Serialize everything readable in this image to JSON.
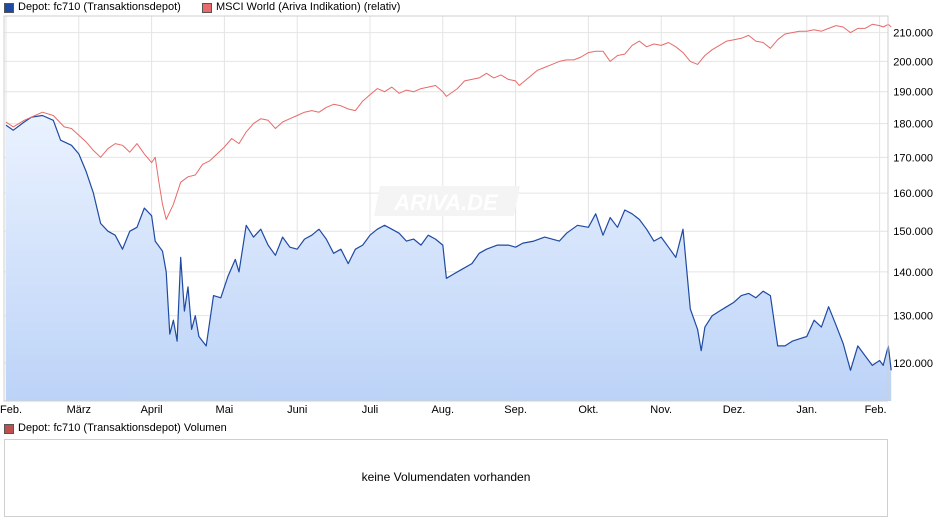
{
  "legend": [
    {
      "label": "Depot: fc710 (Transaktionsdepot)",
      "color": "#1f4aa3"
    },
    {
      "label": "MSCI World (Ariva Indikation) (relativ)",
      "color": "#e86a6a"
    }
  ],
  "watermark": "ARIVA.DE",
  "volume": {
    "legend_label": "Depot: fc710 (Transaktionsdepot) Volumen",
    "legend_color": "#c0504d",
    "message": "keine Volumendaten vorhanden"
  },
  "chart_data": {
    "type": "line",
    "x_months": [
      "Feb.",
      "März",
      "April",
      "Mai",
      "Juni",
      "Juli",
      "Aug.",
      "Sep.",
      "Okt.",
      "Nov.",
      "Dez.",
      "Jan.",
      "Feb."
    ],
    "y_ticks": [
      "120.000",
      "130.000",
      "140.000",
      "150.000",
      "160.000",
      "170.000",
      "180.000",
      "190.000",
      "200.000",
      "210.000"
    ],
    "ylim": [
      112500,
      216000
    ],
    "y_scale": "log",
    "grid": true,
    "series": [
      {
        "name": "Depot: fc710 (Transaktionsdepot)",
        "style": "area",
        "color": "#1f4aa3",
        "values": [
          [
            0.0,
            179500
          ],
          [
            0.1,
            178000
          ],
          [
            0.25,
            180500
          ],
          [
            0.35,
            182000
          ],
          [
            0.5,
            182500
          ],
          [
            0.65,
            181000
          ],
          [
            0.75,
            175000
          ],
          [
            0.9,
            173500
          ],
          [
            1.0,
            171000
          ],
          [
            1.1,
            166000
          ],
          [
            1.2,
            160000
          ],
          [
            1.3,
            152000
          ],
          [
            1.4,
            150000
          ],
          [
            1.5,
            149000
          ],
          [
            1.6,
            145500
          ],
          [
            1.7,
            150000
          ],
          [
            1.8,
            151000
          ],
          [
            1.9,
            156000
          ],
          [
            2.0,
            154000
          ],
          [
            2.05,
            147500
          ],
          [
            2.15,
            145000
          ],
          [
            2.2,
            140000
          ],
          [
            2.25,
            126000
          ],
          [
            2.3,
            129000
          ],
          [
            2.35,
            124500
          ],
          [
            2.4,
            143500
          ],
          [
            2.45,
            131000
          ],
          [
            2.5,
            136500
          ],
          [
            2.55,
            127000
          ],
          [
            2.6,
            130000
          ],
          [
            2.65,
            125500
          ],
          [
            2.75,
            123500
          ],
          [
            2.85,
            134500
          ],
          [
            2.95,
            134000
          ],
          [
            3.05,
            139000
          ],
          [
            3.15,
            143000
          ],
          [
            3.2,
            140000
          ],
          [
            3.3,
            151500
          ],
          [
            3.4,
            148500
          ],
          [
            3.5,
            150500
          ],
          [
            3.6,
            146500
          ],
          [
            3.7,
            144000
          ],
          [
            3.8,
            148500
          ],
          [
            3.9,
            146000
          ],
          [
            4.0,
            145500
          ],
          [
            4.1,
            148000
          ],
          [
            4.2,
            149000
          ],
          [
            4.3,
            150500
          ],
          [
            4.4,
            148000
          ],
          [
            4.5,
            144500
          ],
          [
            4.6,
            145500
          ],
          [
            4.7,
            142000
          ],
          [
            4.8,
            145500
          ],
          [
            4.9,
            146500
          ],
          [
            5.0,
            149000
          ],
          [
            5.1,
            150500
          ],
          [
            5.2,
            151500
          ],
          [
            5.3,
            150500
          ],
          [
            5.4,
            149500
          ],
          [
            5.5,
            147500
          ],
          [
            5.6,
            148000
          ],
          [
            5.7,
            146500
          ],
          [
            5.8,
            149000
          ],
          [
            5.9,
            148000
          ],
          [
            6.0,
            146500
          ],
          [
            6.05,
            138500
          ],
          [
            6.15,
            139500
          ],
          [
            6.25,
            140500
          ],
          [
            6.4,
            142000
          ],
          [
            6.5,
            144500
          ],
          [
            6.6,
            145500
          ],
          [
            6.75,
            146500
          ],
          [
            6.9,
            146500
          ],
          [
            7.0,
            146000
          ],
          [
            7.1,
            147000
          ],
          [
            7.25,
            147500
          ],
          [
            7.4,
            148500
          ],
          [
            7.5,
            148000
          ],
          [
            7.6,
            147500
          ],
          [
            7.7,
            149500
          ],
          [
            7.85,
            151500
          ],
          [
            8.0,
            151000
          ],
          [
            8.1,
            154500
          ],
          [
            8.2,
            149000
          ],
          [
            8.3,
            153500
          ],
          [
            8.4,
            151000
          ],
          [
            8.5,
            155500
          ],
          [
            8.6,
            154500
          ],
          [
            8.7,
            153000
          ],
          [
            8.8,
            150500
          ],
          [
            8.9,
            147500
          ],
          [
            9.0,
            148500
          ],
          [
            9.1,
            146000
          ],
          [
            9.2,
            143500
          ],
          [
            9.3,
            150500
          ],
          [
            9.4,
            131500
          ],
          [
            9.5,
            127000
          ],
          [
            9.55,
            122500
          ],
          [
            9.6,
            127500
          ],
          [
            9.7,
            130000
          ],
          [
            9.8,
            131000
          ],
          [
            9.9,
            132000
          ],
          [
            10.0,
            133000
          ],
          [
            10.1,
            134500
          ],
          [
            10.2,
            135000
          ],
          [
            10.3,
            134000
          ],
          [
            10.4,
            135500
          ],
          [
            10.5,
            134500
          ],
          [
            10.6,
            123500
          ],
          [
            10.7,
            123500
          ],
          [
            10.8,
            124500
          ],
          [
            10.9,
            125000
          ],
          [
            11.0,
            125500
          ],
          [
            11.1,
            129000
          ],
          [
            11.2,
            127500
          ],
          [
            11.3,
            132000
          ],
          [
            11.4,
            128000
          ],
          [
            11.5,
            124000
          ],
          [
            11.6,
            118500
          ],
          [
            11.7,
            123500
          ],
          [
            11.8,
            121500
          ],
          [
            11.9,
            119500
          ],
          [
            12.0,
            120500
          ],
          [
            12.05,
            119500
          ],
          [
            12.12,
            123500
          ],
          [
            12.16,
            118500
          ]
        ]
      },
      {
        "name": "MSCI World (Ariva Indikation) (relativ)",
        "style": "line",
        "color": "#e86a6a",
        "values": [
          [
            0.0,
            180500
          ],
          [
            0.1,
            179000
          ],
          [
            0.25,
            181000
          ],
          [
            0.35,
            182000
          ],
          [
            0.5,
            183500
          ],
          [
            0.65,
            182500
          ],
          [
            0.8,
            179000
          ],
          [
            0.9,
            178500
          ],
          [
            1.0,
            176500
          ],
          [
            1.1,
            174500
          ],
          [
            1.2,
            172000
          ],
          [
            1.3,
            170000
          ],
          [
            1.4,
            172500
          ],
          [
            1.5,
            174000
          ],
          [
            1.6,
            173500
          ],
          [
            1.7,
            171500
          ],
          [
            1.8,
            174000
          ],
          [
            1.9,
            171000
          ],
          [
            2.0,
            168500
          ],
          [
            2.05,
            170000
          ],
          [
            2.1,
            163000
          ],
          [
            2.15,
            157000
          ],
          [
            2.2,
            153000
          ],
          [
            2.3,
            157000
          ],
          [
            2.4,
            163000
          ],
          [
            2.5,
            164500
          ],
          [
            2.6,
            165000
          ],
          [
            2.7,
            168000
          ],
          [
            2.8,
            169000
          ],
          [
            2.9,
            171000
          ],
          [
            3.0,
            173000
          ],
          [
            3.1,
            175500
          ],
          [
            3.2,
            174000
          ],
          [
            3.3,
            177500
          ],
          [
            3.4,
            180000
          ],
          [
            3.5,
            181500
          ],
          [
            3.6,
            181000
          ],
          [
            3.7,
            178500
          ],
          [
            3.8,
            180500
          ],
          [
            3.9,
            181500
          ],
          [
            4.0,
            182500
          ],
          [
            4.1,
            183500
          ],
          [
            4.2,
            184000
          ],
          [
            4.3,
            183500
          ],
          [
            4.4,
            185000
          ],
          [
            4.5,
            186000
          ],
          [
            4.6,
            185500
          ],
          [
            4.7,
            184500
          ],
          [
            4.8,
            184000
          ],
          [
            4.9,
            187000
          ],
          [
            5.0,
            189000
          ],
          [
            5.1,
            191000
          ],
          [
            5.2,
            190000
          ],
          [
            5.3,
            191500
          ],
          [
            5.4,
            189500
          ],
          [
            5.5,
            190500
          ],
          [
            5.6,
            190000
          ],
          [
            5.7,
            191000
          ],
          [
            5.8,
            191500
          ],
          [
            5.9,
            192000
          ],
          [
            6.0,
            190000
          ],
          [
            6.05,
            188500
          ],
          [
            6.2,
            191000
          ],
          [
            6.3,
            193500
          ],
          [
            6.4,
            194000
          ],
          [
            6.5,
            194500
          ],
          [
            6.6,
            196000
          ],
          [
            6.7,
            194500
          ],
          [
            6.8,
            195500
          ],
          [
            6.9,
            194000
          ],
          [
            7.0,
            193500
          ],
          [
            7.05,
            192000
          ],
          [
            7.2,
            195000
          ],
          [
            7.3,
            197000
          ],
          [
            7.4,
            198000
          ],
          [
            7.5,
            199000
          ],
          [
            7.6,
            200000
          ],
          [
            7.7,
            200500
          ],
          [
            7.8,
            200500
          ],
          [
            7.9,
            201500
          ],
          [
            8.0,
            203000
          ],
          [
            8.1,
            203500
          ],
          [
            8.2,
            203500
          ],
          [
            8.3,
            200000
          ],
          [
            8.4,
            202000
          ],
          [
            8.5,
            202500
          ],
          [
            8.6,
            205500
          ],
          [
            8.7,
            207000
          ],
          [
            8.8,
            205000
          ],
          [
            8.9,
            206000
          ],
          [
            9.0,
            205500
          ],
          [
            9.1,
            206500
          ],
          [
            9.2,
            205000
          ],
          [
            9.3,
            203000
          ],
          [
            9.4,
            200000
          ],
          [
            9.5,
            199000
          ],
          [
            9.55,
            200500
          ],
          [
            9.6,
            202000
          ],
          [
            9.7,
            204000
          ],
          [
            9.8,
            205500
          ],
          [
            9.9,
            207000
          ],
          [
            10.0,
            207500
          ],
          [
            10.1,
            208000
          ],
          [
            10.2,
            209000
          ],
          [
            10.3,
            207000
          ],
          [
            10.4,
            206500
          ],
          [
            10.5,
            204500
          ],
          [
            10.6,
            207500
          ],
          [
            10.7,
            209500
          ],
          [
            10.8,
            210000
          ],
          [
            10.9,
            210500
          ],
          [
            11.0,
            210500
          ],
          [
            11.1,
            211000
          ],
          [
            11.2,
            210500
          ],
          [
            11.3,
            211500
          ],
          [
            11.4,
            212500
          ],
          [
            11.5,
            212000
          ],
          [
            11.6,
            210000
          ],
          [
            11.7,
            211500
          ],
          [
            11.8,
            211500
          ],
          [
            11.9,
            213000
          ],
          [
            12.0,
            212500
          ],
          [
            12.05,
            212000
          ],
          [
            12.12,
            213000
          ],
          [
            12.16,
            212000
          ]
        ]
      }
    ]
  }
}
